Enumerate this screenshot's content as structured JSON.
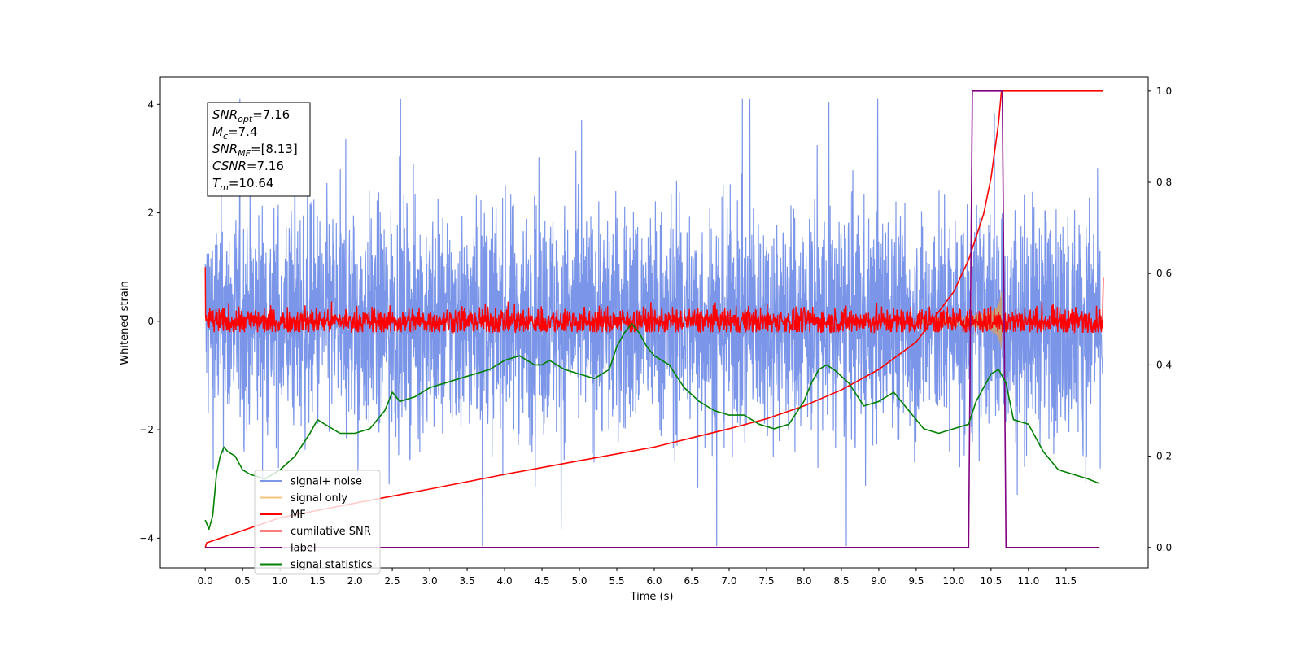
{
  "chart_data": {
    "type": "line",
    "xlabel": "Time (s)",
    "ylabel": "Whitened strain",
    "xlim": [
      -0.6,
      12.6
    ],
    "ylim": [
      -4.55,
      4.5
    ],
    "y2lim": [
      -0.045,
      1.03
    ],
    "xticks": [
      "0.0",
      "0.5",
      "1.0",
      "1.5",
      "2.0",
      "2.5",
      "3.0",
      "3.5",
      "4.0",
      "4.5",
      "5.0",
      "5.5",
      "6.0",
      "6.5",
      "7.0",
      "7.5",
      "8.0",
      "8.5",
      "9.0",
      "9.5",
      "10.0",
      "10.5",
      "11.0",
      "11.5"
    ],
    "yticks": [
      "4",
      "2",
      "0",
      "−2",
      "−4"
    ],
    "y2ticks": [
      "1.0",
      "0.8",
      "0.6",
      "0.4",
      "0.2",
      "0.0"
    ],
    "grid": false,
    "legend_position": "lower-left",
    "annotation": {
      "lines": [
        {
          "sym": "SNR",
          "sub": "opt",
          "rest": "=7.16"
        },
        {
          "sym": "M",
          "sub": "c",
          "rest": "=7.4"
        },
        {
          "sym": "SNR",
          "sub": "MF",
          "rest": "=[8.13]"
        },
        {
          "sym": "CSNR",
          "sub": "",
          "rest": "=7.16"
        },
        {
          "sym": "T",
          "sub": "m",
          "rest": "=10.64"
        }
      ]
    },
    "series": [
      {
        "name": "signal+ noise",
        "color": "#7b96e8",
        "axis": "left",
        "note": "noise band, approx ±1.9 typical, peaks ±4.1"
      },
      {
        "name": "signal only",
        "color": "#f5c77e",
        "axis": "left"
      },
      {
        "name": "MF",
        "color": "#ff0000",
        "axis": "left"
      },
      {
        "name": "cumilative SNR",
        "color": "#ff0000",
        "axis": "right",
        "x": [
          0.0,
          0.02,
          1.0,
          2.0,
          3.0,
          4.0,
          5.0,
          6.0,
          7.0,
          7.5,
          8.0,
          8.5,
          9.0,
          9.5,
          10.0,
          10.2,
          10.4,
          10.5,
          10.6,
          10.64,
          12.0
        ],
        "y": [
          0.0,
          0.01,
          0.065,
          0.097,
          0.128,
          0.16,
          0.19,
          0.22,
          0.26,
          0.282,
          0.31,
          0.345,
          0.39,
          0.45,
          0.56,
          0.63,
          0.73,
          0.81,
          0.93,
          1.0,
          1.0
        ]
      },
      {
        "name": "label",
        "color": "#800080",
        "axis": "right",
        "x": [
          0.0,
          10.2,
          10.25,
          10.65,
          10.7,
          11.95
        ],
        "y": [
          0.0,
          0.0,
          1.0,
          1.0,
          0.0,
          0.0
        ]
      },
      {
        "name": "signal statistics",
        "color": "#008000",
        "axis": "right",
        "x": [
          0.0,
          0.05,
          0.1,
          0.15,
          0.2,
          0.25,
          0.3,
          0.4,
          0.5,
          0.6,
          0.8,
          1.0,
          1.2,
          1.4,
          1.5,
          1.6,
          1.8,
          2.0,
          2.2,
          2.4,
          2.5,
          2.6,
          2.8,
          3.0,
          3.2,
          3.4,
          3.6,
          3.8,
          4.0,
          4.2,
          4.4,
          4.5,
          4.6,
          4.8,
          5.0,
          5.2,
          5.4,
          5.5,
          5.6,
          5.7,
          5.8,
          5.9,
          6.0,
          6.2,
          6.4,
          6.6,
          6.8,
          7.0,
          7.2,
          7.4,
          7.6,
          7.8,
          8.0,
          8.1,
          8.2,
          8.3,
          8.4,
          8.6,
          8.8,
          9.0,
          9.2,
          9.4,
          9.6,
          9.8,
          10.0,
          10.2,
          10.3,
          10.4,
          10.5,
          10.6,
          10.7,
          10.8,
          11.0,
          11.2,
          11.4,
          11.6,
          11.8,
          11.95
        ],
        "y": [
          0.06,
          0.04,
          0.07,
          0.16,
          0.2,
          0.22,
          0.21,
          0.2,
          0.17,
          0.16,
          0.15,
          0.17,
          0.2,
          0.25,
          0.28,
          0.27,
          0.25,
          0.25,
          0.26,
          0.3,
          0.34,
          0.32,
          0.33,
          0.35,
          0.36,
          0.37,
          0.38,
          0.39,
          0.41,
          0.42,
          0.4,
          0.4,
          0.41,
          0.39,
          0.38,
          0.37,
          0.39,
          0.44,
          0.47,
          0.49,
          0.47,
          0.44,
          0.42,
          0.4,
          0.35,
          0.32,
          0.3,
          0.29,
          0.29,
          0.27,
          0.26,
          0.27,
          0.32,
          0.36,
          0.39,
          0.4,
          0.39,
          0.36,
          0.31,
          0.32,
          0.34,
          0.3,
          0.26,
          0.25,
          0.26,
          0.27,
          0.32,
          0.35,
          0.38,
          0.39,
          0.36,
          0.28,
          0.27,
          0.21,
          0.17,
          0.16,
          0.15,
          0.14
        ]
      }
    ]
  }
}
